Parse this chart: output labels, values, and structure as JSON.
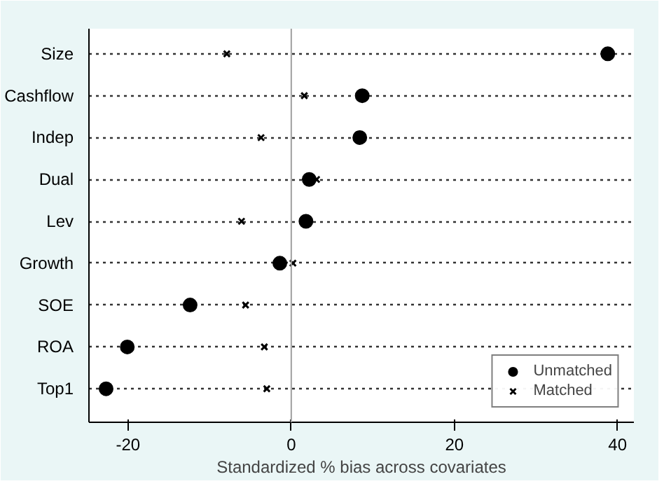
{
  "chart_data": {
    "type": "scatter",
    "xlabel": "Standardized % bias across covariates",
    "categories": [
      "Size",
      "Cashflow",
      "Indep",
      "Dual",
      "Lev",
      "Growth",
      "SOE",
      "ROA",
      "Top1"
    ],
    "orientation": "horizontal",
    "series": [
      {
        "name": "Unmatched",
        "color": "#000000",
        "marker": "circle",
        "values": [
          38.8,
          8.7,
          8.4,
          2.2,
          1.8,
          -1.4,
          -12.4,
          -20.1,
          -22.7
        ]
      },
      {
        "name": "Matched",
        "color": "#000000",
        "marker": "cross",
        "values": [
          -7.9,
          1.6,
          -3.7,
          3.1,
          -6.1,
          0.2,
          -5.6,
          -3.3,
          -3.0
        ]
      }
    ],
    "xlim": [
      -24.8,
      42
    ],
    "xticks": [
      -20,
      0,
      20,
      40
    ],
    "ref_lines": [
      {
        "axis": "x",
        "value": 0,
        "color": "#a0a0a0"
      }
    ],
    "grid": "y",
    "legend": "bottom right"
  }
}
